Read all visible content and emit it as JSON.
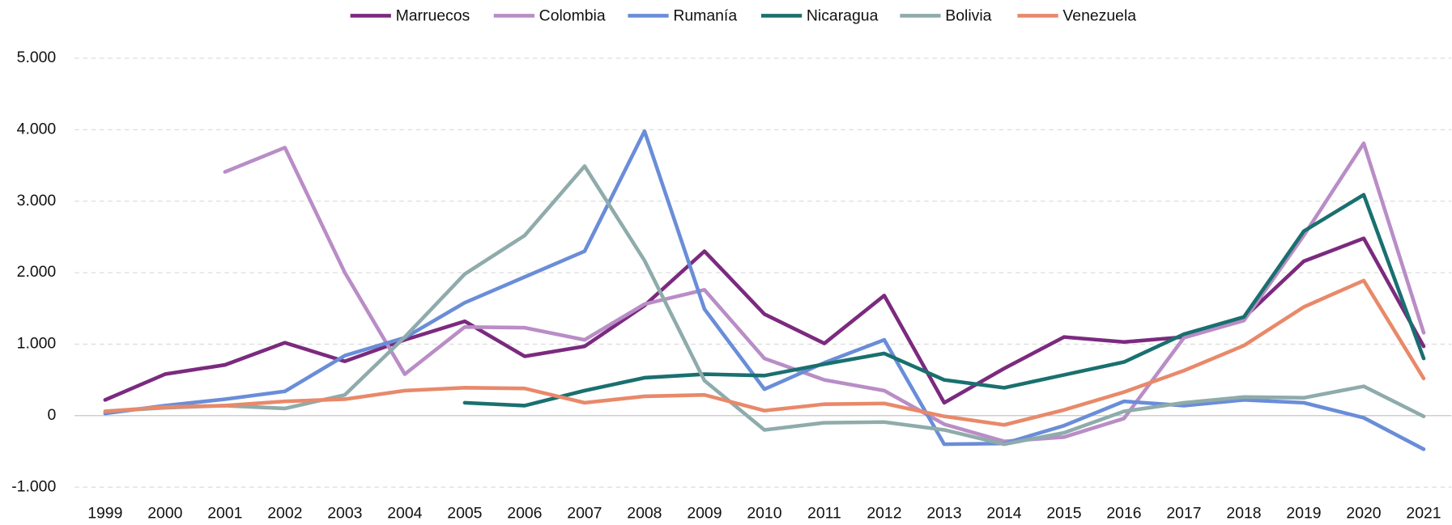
{
  "chart_data": {
    "type": "line",
    "categories": [
      "1999",
      "2000",
      "2001",
      "2002",
      "2003",
      "2004",
      "2005",
      "2006",
      "2007",
      "2008",
      "2009",
      "2010",
      "2011",
      "2012",
      "2013",
      "2014",
      "2015",
      "2016",
      "2017",
      "2018",
      "2019",
      "2020",
      "2021"
    ],
    "series": [
      {
        "name": "Marruecos",
        "color": "#7b2a7e",
        "values": [
          220,
          580,
          710,
          1020,
          760,
          1060,
          1320,
          830,
          970,
          1540,
          2300,
          1420,
          1010,
          1680,
          180,
          660,
          1100,
          1030,
          1100,
          1370,
          2160,
          2480,
          970
        ]
      },
      {
        "name": "Colombia",
        "color": "#b98dc6",
        "values": [
          null,
          null,
          3410,
          3750,
          2000,
          580,
          1240,
          1230,
          1060,
          1560,
          1760,
          800,
          500,
          350,
          -120,
          -360,
          -300,
          -40,
          1090,
          1330,
          2520,
          3810,
          1160
        ]
      },
      {
        "name": "Rumanía",
        "color": "#6a8dd8",
        "values": [
          30,
          140,
          230,
          340,
          840,
          1090,
          1580,
          1940,
          2300,
          3980,
          1490,
          370,
          740,
          1060,
          -400,
          -390,
          -140,
          200,
          140,
          220,
          180,
          -30,
          -470
        ]
      },
      {
        "name": "Nicaragua",
        "color": "#19706f",
        "values": [
          null,
          null,
          null,
          null,
          null,
          null,
          180,
          140,
          350,
          530,
          580,
          560,
          720,
          870,
          500,
          390,
          570,
          750,
          1140,
          1380,
          2580,
          3090,
          800
        ]
      },
      {
        "name": "Bolivia",
        "color": "#8fabab",
        "values": [
          60,
          110,
          140,
          100,
          290,
          1100,
          1980,
          2520,
          3490,
          2170,
          490,
          -200,
          -100,
          -90,
          -200,
          -400,
          -240,
          60,
          180,
          260,
          250,
          410,
          -10
        ]
      },
      {
        "name": "Venezuela",
        "color": "#e8896a",
        "values": [
          60,
          120,
          140,
          200,
          230,
          350,
          390,
          380,
          180,
          270,
          290,
          70,
          160,
          170,
          -10,
          -130,
          80,
          330,
          630,
          980,
          1520,
          1890,
          520
        ]
      }
    ],
    "ylim": [
      -1000,
      5000
    ],
    "yticks": [
      {
        "value": -1000,
        "label": "-1.000"
      },
      0,
      {
        "value": 1000,
        "label": "1.000"
      },
      {
        "value": 2000,
        "label": "2.000"
      },
      {
        "value": 3000,
        "label": "3.000"
      },
      {
        "value": 4000,
        "label": "4.000"
      },
      {
        "value": 5000,
        "label": "5.000"
      }
    ],
    "grid": true,
    "legend": "top"
  }
}
